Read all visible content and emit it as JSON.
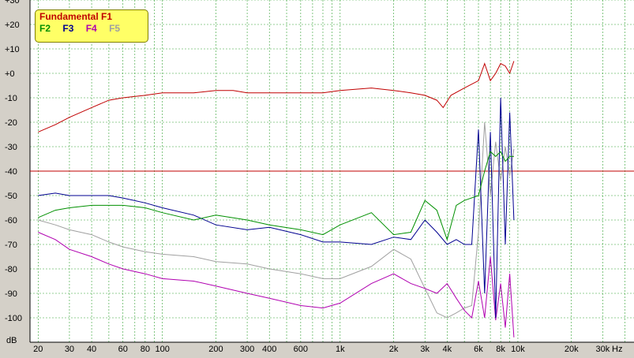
{
  "chart_data": {
    "type": "line",
    "title": "",
    "xlabel": "Hz",
    "ylabel": "dB",
    "x_scale": "log",
    "xlim": [
      18,
      45000
    ],
    "ylim": [
      -110,
      30
    ],
    "x_ticks": [
      20,
      30,
      40,
      60,
      80,
      100,
      200,
      300,
      400,
      600,
      "1k",
      "2k",
      "3k",
      "4k",
      "6k",
      "8k",
      "10k",
      "20k",
      "30k"
    ],
    "x_tick_values": [
      20,
      30,
      40,
      60,
      80,
      100,
      200,
      300,
      400,
      600,
      1000,
      2000,
      3000,
      4000,
      6000,
      8000,
      10000,
      20000,
      30000
    ],
    "y_ticks": [
      "+30",
      "+20",
      "+10",
      "+0",
      "-10",
      "-20",
      "-30",
      "-40",
      "-50",
      "-60",
      "-70",
      "-80",
      "-90",
      "-100"
    ],
    "y_tick_values": [
      30,
      20,
      10,
      0,
      -10,
      -20,
      -30,
      -40,
      -50,
      -60,
      -70,
      -80,
      -90,
      -100
    ],
    "hline_value": -40,
    "legend": {
      "title": "Fundamental F1",
      "items": [
        "F2",
        "F3",
        "F4",
        "F5"
      ]
    },
    "series": [
      {
        "name": "Fundamental F1",
        "color": "#c00000",
        "x": [
          20,
          25,
          30,
          40,
          50,
          60,
          80,
          100,
          150,
          200,
          250,
          300,
          400,
          500,
          600,
          800,
          1000,
          1500,
          2000,
          2500,
          3000,
          3500,
          3800,
          4200,
          5000,
          6000,
          6500,
          7000,
          7500,
          8000,
          8500,
          9000,
          9500
        ],
        "y": [
          -24,
          -21,
          -18,
          -14,
          -11,
          -10,
          -9,
          -8,
          -8,
          -7,
          -7,
          -8,
          -8,
          -8,
          -8,
          -8,
          -7,
          -6,
          -7,
          -8,
          -9,
          -11,
          -14,
          -9,
          -6,
          -3,
          4,
          -3,
          0,
          4,
          3,
          0,
          5
        ]
      },
      {
        "name": "F2",
        "color": "#009000",
        "x": [
          20,
          25,
          30,
          40,
          50,
          60,
          80,
          100,
          150,
          200,
          300,
          400,
          600,
          800,
          1000,
          1500,
          2000,
          2500,
          3000,
          3500,
          4000,
          4500,
          5000,
          6000,
          6500,
          7000,
          7500,
          8000,
          8500,
          9000,
          9500
        ],
        "y": [
          -59,
          -56,
          -55,
          -54,
          -54,
          -54,
          -55,
          -57,
          -60,
          -58,
          -60,
          -62,
          -64,
          -66,
          -62,
          -57,
          -66,
          -65,
          -52,
          -56,
          -68,
          -54,
          -52,
          -50,
          -40,
          -32,
          -34,
          -32,
          -36,
          -34,
          -34
        ]
      },
      {
        "name": "F3",
        "color": "#000090",
        "x": [
          20,
          25,
          30,
          40,
          50,
          60,
          80,
          100,
          150,
          200,
          300,
          400,
          600,
          800,
          1000,
          1500,
          2000,
          2500,
          3000,
          3500,
          4000,
          4500,
          5000,
          5500,
          6000,
          6500,
          7000,
          7500,
          8000,
          8500,
          9000,
          9500
        ],
        "y": [
          -50,
          -49,
          -50,
          -50,
          -50,
          -51,
          -53,
          -55,
          -58,
          -62,
          -64,
          -63,
          -66,
          -69,
          -69,
          -70,
          -67,
          -68,
          -60,
          -65,
          -70,
          -68,
          -70,
          -70,
          -23,
          -90,
          -24,
          -100,
          -10,
          -70,
          -16,
          -60
        ]
      },
      {
        "name": "F4",
        "color": "#b000b0",
        "x": [
          20,
          25,
          30,
          40,
          50,
          60,
          80,
          100,
          150,
          200,
          300,
          400,
          600,
          800,
          1000,
          1500,
          2000,
          2500,
          3000,
          3500,
          4000,
          4500,
          5000,
          5500,
          6000,
          6500,
          7000,
          7500,
          8000,
          8500,
          9000,
          9500
        ],
        "y": [
          -65,
          -68,
          -72,
          -75,
          -78,
          -80,
          -82,
          -84,
          -85,
          -87,
          -90,
          -92,
          -95,
          -96,
          -94,
          -86,
          -82,
          -86,
          -88,
          -90,
          -86,
          -92,
          -97,
          -100,
          -85,
          -100,
          -75,
          -101,
          -86,
          -104,
          -82,
          -108
        ]
      },
      {
        "name": "F5",
        "color": "#a0a0a0",
        "x": [
          20,
          25,
          30,
          40,
          50,
          60,
          80,
          100,
          150,
          200,
          300,
          400,
          600,
          800,
          1000,
          1500,
          2000,
          2500,
          3000,
          3500,
          4000,
          4500,
          5000,
          5500,
          6000,
          6500,
          7000,
          7500,
          8000,
          8500,
          9000,
          9500
        ],
        "y": [
          -60,
          -62,
          -64,
          -66,
          -69,
          -71,
          -73,
          -74,
          -75,
          -77,
          -78,
          -80,
          -82,
          -84,
          -84,
          -79,
          -72,
          -76,
          -88,
          -98,
          -100,
          -98,
          -96,
          -95,
          -65,
          -20,
          -50,
          -28,
          -44,
          -30,
          -42,
          -31
        ]
      }
    ]
  }
}
